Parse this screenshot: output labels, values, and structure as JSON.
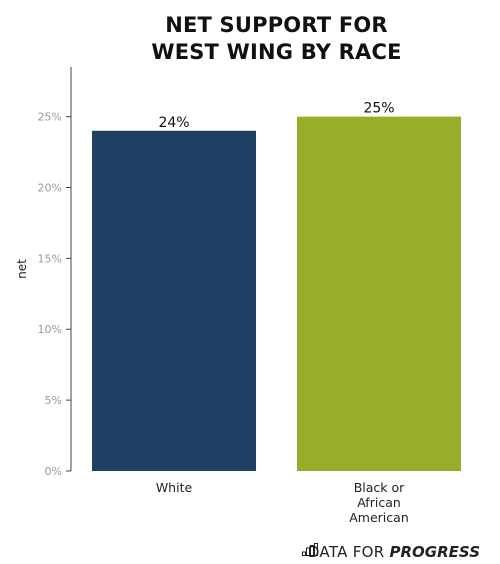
{
  "chart_data": {
    "type": "bar",
    "title_lines": [
      "NET SUPPORT FOR",
      "WEST WING BY RACE"
    ],
    "ylabel": "net",
    "xlabel": "",
    "categories": [
      {
        "label_lines": [
          "White"
        ],
        "value": 24,
        "data_label": "24%",
        "color": "#1f3f63"
      },
      {
        "label_lines": [
          "Black or",
          "African",
          "American"
        ],
        "value": 25,
        "data_label": "25%",
        "color": "#9aad2b"
      }
    ],
    "yticks": [
      {
        "value": 0,
        "label": "0%"
      },
      {
        "value": 5,
        "label": "5%"
      },
      {
        "value": 10,
        "label": "10%"
      },
      {
        "value": 15,
        "label": "15%"
      },
      {
        "value": 20,
        "label": "20%"
      },
      {
        "value": 25,
        "label": "25%"
      }
    ],
    "ylim": [
      0,
      28.5
    ],
    "grid": false,
    "legend": "none"
  },
  "branding": {
    "text_regular": "DATA FOR",
    "text_bold": "PROGRESS",
    "icon": "bar-chart-logo-icon"
  }
}
